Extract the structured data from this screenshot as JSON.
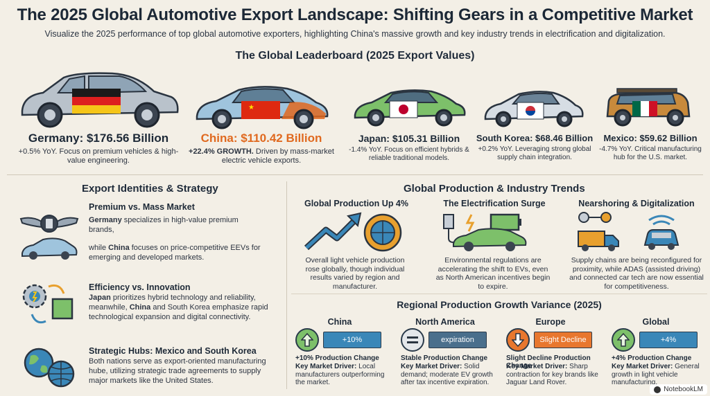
{
  "header": {
    "title": "The 2025 Global Automotive Export Landscape: Shifting Gears in a Competitive Market",
    "subtitle": "Visualize the 2025 performance of top global automotive exporters, highlighting China's massive growth and key industry trends in electrification and digitalization."
  },
  "leaderboard": {
    "title": "The Global Leaderboard (2025 Export Values)",
    "exporters": [
      {
        "name": "Germany: $176.56 Billion",
        "growth": "+0.5% YoY.",
        "desc": "Focus on premium vehicles & high-value engineering."
      },
      {
        "name": "China: $110.42 Billion",
        "growth": "+22.4% GROWTH.",
        "desc": "Driven by mass-market electric vehicle exports."
      },
      {
        "name": "Japan: $105.31 Billion",
        "growth": "-1.4% YoY.",
        "desc": "Focus on efficient hybrids & reliable traditional models."
      },
      {
        "name": "South Korea: $68.46 Billion",
        "growth": "+0.2% YoY.",
        "desc": "Leveraging strong global supply chain integration."
      },
      {
        "name": "Mexico: $59.62 Billion",
        "growth": "-4.7% YoY.",
        "desc": "Critical manufacturing hub for the U.S. market."
      }
    ]
  },
  "strategy": {
    "title": "Export Identities & Strategy",
    "items": [
      {
        "head": "Premium vs. Mass Market",
        "text1_bold": "Germany",
        "text1": " specializes in high-value premium brands,",
        "text2_pre": "while ",
        "text2_bold": "China",
        "text2": " focuses on price-competitive EEVs for emerging and developed markets."
      },
      {
        "head": "Efficiency vs. Innovation",
        "text_bold1": "Japan",
        "text_mid": " prioritizes hybrid technology and reliability, meanwhile, ",
        "text_bold2": "China",
        "text_end": " and South Korea emphasize rapid technological expansion and digital connectivity."
      },
      {
        "head": "Strategic Hubs: Mexico and South Korea",
        "text": "Both nations serve as export-oriented manufacturing hube, utilizing strategic trade agreements to supply major markets like the United States."
      }
    ]
  },
  "trends": {
    "title": "Global Production & Industry Trends",
    "items": [
      {
        "head": "Global Production Up 4%",
        "text": "Overall light vehicle production rose globally, though individual results varied by region and manufacturer."
      },
      {
        "head": "The Electrification Surge",
        "text": "Environmental regulations are accelerating the shift to EVs, even as North American incentives begin to expire."
      },
      {
        "head": "Nearshoring & Digitalization",
        "text": "Supply chains are being reconfigured for proximity, while ADAS (assisted driving) and connected car tech are now essential for competitiveness."
      }
    ]
  },
  "regional": {
    "title": "Regional Production Growth Variance (2025)",
    "regions": [
      {
        "name": "China",
        "bar_label": "+10%",
        "change": "+10% Production Change",
        "driver_label": "Key Market Driver:",
        "driver": " Local manufacturers outperforming the market.",
        "color": "#3a87b8"
      },
      {
        "name": "North America",
        "bar_label": "expiration",
        "change": "Stable Production Change",
        "driver_label": "Key Market Driver:",
        "driver": " Solid demand; moderate EV growth after tax incentive expiration.",
        "color": "#4a6f8c"
      },
      {
        "name": "Europe",
        "bar_label": "Slight Decline",
        "change": "Slight Decline Production Change",
        "driver_label": "Key Market Driver:",
        "driver": " Sharp contraction for key brands like Jaguar Land Rover.",
        "color": "#e8772e"
      },
      {
        "name": "Global",
        "bar_label": "+4%",
        "change": "+4% Production Change",
        "driver_label": "Key Market Driver:",
        "driver": " General growth in light vehicle manufacturing.",
        "color": "#3a87b8"
      }
    ]
  },
  "footer": {
    "badge": "NotebookLM"
  },
  "colors": {
    "background": "#f3efe6",
    "accent_orange": "#e0691f",
    "accent_blue": "#3a87b8",
    "text_dark": "#1d2937"
  },
  "icons": [
    "wings-badge-icon",
    "ev-car-icon",
    "gear-chip-icon",
    "globe-icon",
    "growth-arrow-icon",
    "ev-charging-icon",
    "truck-icon",
    "connected-car-icon",
    "up-arrow-icon",
    "down-arrow-icon",
    "equals-icon"
  ]
}
